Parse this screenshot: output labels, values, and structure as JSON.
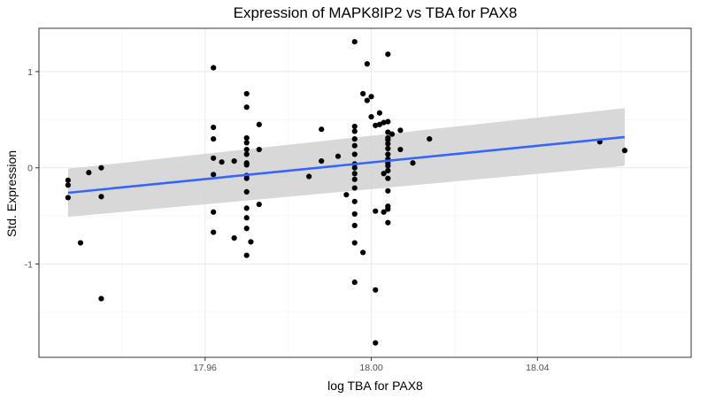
{
  "chart_data": {
    "type": "scatter",
    "title": "Expression of MAPK8IP2 vs TBA for PAX8",
    "xlabel": "log TBA for PAX8",
    "ylabel": "Std. Expression",
    "xlim": [
      17.92,
      18.077
    ],
    "ylim": [
      -1.97,
      1.45
    ],
    "x_ticks": [
      17.96,
      18.0,
      18.04
    ],
    "x_tick_labels": [
      "17.96",
      "18.00",
      "18.04"
    ],
    "y_ticks": [
      -1,
      0,
      1
    ],
    "y_tick_labels": [
      "-1",
      "0",
      "1"
    ],
    "grid": true,
    "points": [
      [
        17.927,
        -0.13
      ],
      [
        17.927,
        -0.18
      ],
      [
        17.927,
        -0.31
      ],
      [
        17.93,
        -0.78
      ],
      [
        17.932,
        -0.05
      ],
      [
        17.935,
        0.0
      ],
      [
        17.935,
        -0.3
      ],
      [
        17.935,
        -1.36
      ],
      [
        17.962,
        1.04
      ],
      [
        17.962,
        0.42
      ],
      [
        17.962,
        0.3
      ],
      [
        17.962,
        0.1
      ],
      [
        17.962,
        -0.07
      ],
      [
        17.962,
        -0.46
      ],
      [
        17.962,
        -0.67
      ],
      [
        17.964,
        0.06
      ],
      [
        17.967,
        0.07
      ],
      [
        17.967,
        -0.73
      ],
      [
        17.97,
        0.77
      ],
      [
        17.97,
        0.63
      ],
      [
        17.97,
        0.31
      ],
      [
        17.97,
        0.26
      ],
      [
        17.97,
        0.19
      ],
      [
        17.97,
        0.14
      ],
      [
        17.97,
        0.05
      ],
      [
        17.97,
        0.03
      ],
      [
        17.97,
        -0.08
      ],
      [
        17.97,
        -0.11
      ],
      [
        17.97,
        -0.25
      ],
      [
        17.97,
        -0.42
      ],
      [
        17.97,
        -0.52
      ],
      [
        17.97,
        -0.63
      ],
      [
        17.97,
        -0.91
      ],
      [
        17.971,
        -0.77
      ],
      [
        17.973,
        0.45
      ],
      [
        17.973,
        0.19
      ],
      [
        17.973,
        -0.38
      ],
      [
        17.985,
        -0.09
      ],
      [
        17.988,
        0.4
      ],
      [
        17.988,
        0.07
      ],
      [
        17.992,
        0.12
      ],
      [
        17.994,
        -0.28
      ],
      [
        17.996,
        1.31
      ],
      [
        17.996,
        0.43
      ],
      [
        17.996,
        0.38
      ],
      [
        17.996,
        0.3
      ],
      [
        17.996,
        0.23
      ],
      [
        17.996,
        0.14
      ],
      [
        17.996,
        0.04
      ],
      [
        17.996,
        0.0
      ],
      [
        17.996,
        -0.06
      ],
      [
        17.996,
        -0.12
      ],
      [
        17.996,
        -0.21
      ],
      [
        17.996,
        -0.35
      ],
      [
        17.996,
        -0.48
      ],
      [
        17.996,
        -0.6
      ],
      [
        17.996,
        -0.78
      ],
      [
        17.996,
        -1.19
      ],
      [
        17.998,
        -0.88
      ],
      [
        17.998,
        0.77
      ],
      [
        17.999,
        1.08
      ],
      [
        17.999,
        0.7
      ],
      [
        18.0,
        0.53
      ],
      [
        18.0,
        0.74
      ],
      [
        18.001,
        0.44
      ],
      [
        18.001,
        -0.45
      ],
      [
        18.001,
        -1.27
      ],
      [
        18.001,
        -1.82
      ],
      [
        18.002,
        0.57
      ],
      [
        18.002,
        0.45
      ],
      [
        18.003,
        0.47
      ],
      [
        18.003,
        -0.06
      ],
      [
        18.003,
        -0.46
      ],
      [
        18.004,
        1.18
      ],
      [
        18.004,
        0.48
      ],
      [
        18.004,
        0.37
      ],
      [
        18.004,
        0.31
      ],
      [
        18.004,
        0.29
      ],
      [
        18.004,
        0.25
      ],
      [
        18.004,
        0.2
      ],
      [
        18.004,
        0.14
      ],
      [
        18.004,
        0.09
      ],
      [
        18.004,
        0.05
      ],
      [
        18.004,
        0.02
      ],
      [
        18.004,
        -0.03
      ],
      [
        18.004,
        -0.11
      ],
      [
        18.004,
        -0.24
      ],
      [
        18.004,
        -0.4
      ],
      [
        18.004,
        -0.43
      ],
      [
        18.004,
        -0.57
      ],
      [
        18.005,
        0.35
      ],
      [
        18.007,
        0.39
      ],
      [
        18.007,
        0.19
      ],
      [
        18.01,
        0.05
      ],
      [
        18.014,
        0.3
      ],
      [
        18.055,
        0.27
      ],
      [
        18.061,
        0.18
      ]
    ],
    "trend_line": {
      "x": [
        17.927,
        18.061
      ],
      "y": [
        -0.26,
        0.32
      ],
      "color": "#3366ff"
    },
    "confidence_band": {
      "x": [
        17.927,
        18.061
      ],
      "lower": [
        -0.51,
        0.02
      ],
      "upper": [
        -0.01,
        0.62
      ],
      "color": "#d4d4d4"
    },
    "point_color": "#000000"
  }
}
